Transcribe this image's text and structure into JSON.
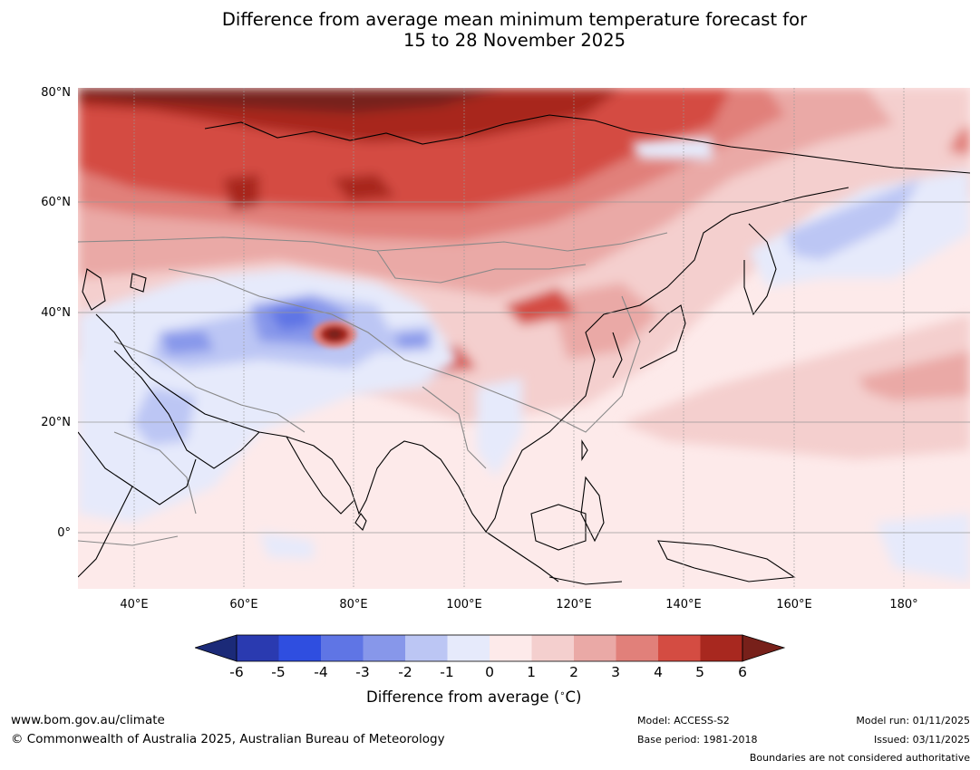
{
  "title": {
    "line1": "Difference from average mean minimum temperature forecast for",
    "line2": "15 to 28 November 2025"
  },
  "axes": {
    "y_labels": [
      "80°N",
      "60°N",
      "40°N",
      "20°N",
      "0°"
    ],
    "x_labels": [
      "40°E",
      "60°E",
      "80°E",
      "100°E",
      "120°E",
      "140°E",
      "160°E",
      "180°"
    ]
  },
  "colorbar": {
    "ticks": [
      "-6",
      "-5",
      "-4",
      "-3",
      "-2",
      "-1",
      "0",
      "1",
      "2",
      "3",
      "4",
      "5",
      "6"
    ],
    "title": "Difference from average (",
    "title_unit": "C)",
    "colors": {
      "lt_m6": "#1b2a78",
      "m6_m5": "#2a3ab0",
      "m5_m4": "#2f4ee0",
      "m4_m3": "#5f75e5",
      "m3_m2": "#8797ea",
      "m2_m1": "#bcc6f4",
      "m1_0": "#e6eafb",
      "0_1": "#fdeaea",
      "1_2": "#f4cfce",
      "2_3": "#eaa9a6",
      "3_4": "#e1807a",
      "4_5": "#d44c42",
      "5_6": "#a8281f",
      "gt_6": "#77201a"
    }
  },
  "footer": {
    "website": "www.bom.gov.au/climate",
    "copyright": "© Commonwealth of Australia 2025, Australian Bureau of Meteorology",
    "model": "Model: ACCESS-S2",
    "base_period": "Base period: 1981-2018",
    "model_run": "Model run: 01/11/2025",
    "issued": "Issued: 03/11/2025",
    "disclaimer": "Boundaries are not considered authoritative"
  }
}
